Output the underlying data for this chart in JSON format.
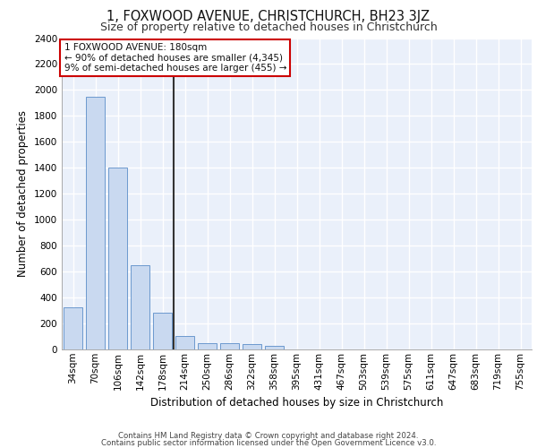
{
  "title": "1, FOXWOOD AVENUE, CHRISTCHURCH, BH23 3JZ",
  "subtitle": "Size of property relative to detached houses in Christchurch",
  "xlabel": "Distribution of detached houses by size in Christchurch",
  "ylabel": "Number of detached properties",
  "bar_labels": [
    "34sqm",
    "70sqm",
    "106sqm",
    "142sqm",
    "178sqm",
    "214sqm",
    "250sqm",
    "286sqm",
    "322sqm",
    "358sqm",
    "395sqm",
    "431sqm",
    "467sqm",
    "503sqm",
    "539sqm",
    "575sqm",
    "611sqm",
    "647sqm",
    "683sqm",
    "719sqm",
    "755sqm"
  ],
  "bar_values": [
    325,
    1950,
    1400,
    650,
    280,
    105,
    50,
    45,
    40,
    25,
    0,
    0,
    0,
    0,
    0,
    0,
    0,
    0,
    0,
    0,
    0
  ],
  "bar_color": "#c9d9f0",
  "bar_edge_color": "#5b8dc8",
  "vline_color": "#333333",
  "vline_x_index": 4,
  "ylim": [
    0,
    2400
  ],
  "yticks": [
    0,
    200,
    400,
    600,
    800,
    1000,
    1200,
    1400,
    1600,
    1800,
    2000,
    2200,
    2400
  ],
  "annotation_line1": "1 FOXWOOD AVENUE: 180sqm",
  "annotation_line2": "← 90% of detached houses are smaller (4,345)",
  "annotation_line3": "9% of semi-detached houses are larger (455) →",
  "annotation_box_edgecolor": "#cc0000",
  "footer_line1": "Contains HM Land Registry data © Crown copyright and database right 2024.",
  "footer_line2": "Contains public sector information licensed under the Open Government Licence v3.0.",
  "bg_color": "#eaf0fa",
  "grid_color": "#ffffff",
  "title_fontsize": 10.5,
  "subtitle_fontsize": 9,
  "axis_label_fontsize": 8.5,
  "tick_fontsize": 7.5,
  "footer_fontsize": 6.2
}
